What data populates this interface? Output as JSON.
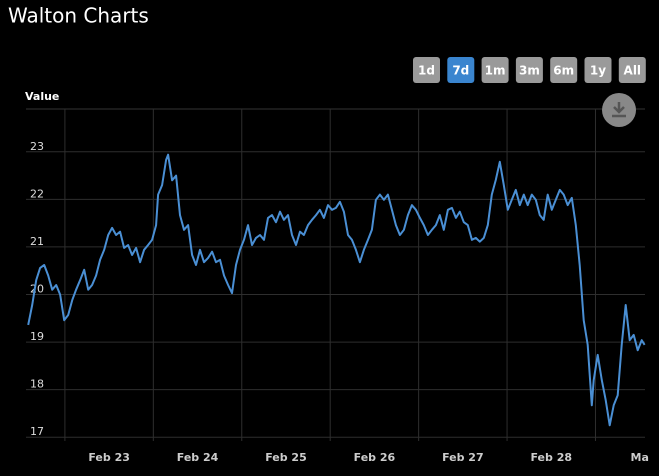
{
  "header": {
    "title": "Walton Charts"
  },
  "range_selector": {
    "buttons": [
      "1d",
      "7d",
      "1m",
      "3m",
      "6m",
      "1y",
      "All"
    ],
    "selected": 1
  },
  "chart_data": {
    "type": "line",
    "y_label": "Value",
    "xlim": [
      -0.94,
      6.06
    ],
    "ylim": [
      16.92,
      23.9
    ],
    "yticks": [
      17,
      18,
      19,
      20,
      21,
      22,
      23
    ],
    "xticks": [
      {
        "value": 0,
        "label": "Feb 23"
      },
      {
        "value": 1,
        "label": "Feb 24"
      },
      {
        "value": 2,
        "label": "Feb 25"
      },
      {
        "value": 3,
        "label": "Feb 26"
      },
      {
        "value": 4,
        "label": "Feb 27"
      },
      {
        "value": 5,
        "label": "Feb 28"
      },
      {
        "value": 6,
        "label": "Ma"
      }
    ],
    "xgrid": [
      -0.5,
      0.5,
      1.5,
      2.5,
      3.5,
      4.5,
      5.5
    ],
    "grid": true,
    "series": [
      {
        "color": "#4a8fd4",
        "x": [
          -0.915,
          -0.87,
          -0.825,
          -0.78,
          -0.734,
          -0.689,
          -0.644,
          -0.599,
          -0.554,
          -0.508,
          -0.463,
          -0.418,
          -0.373,
          -0.328,
          -0.282,
          -0.237,
          -0.192,
          -0.147,
          -0.102,
          -0.056,
          -0.011,
          0.034,
          0.079,
          0.124,
          0.169,
          0.215,
          0.26,
          0.305,
          0.35,
          0.395,
          0.441,
          0.486,
          0.531,
          0.554,
          0.599,
          0.644,
          0.667,
          0.712,
          0.757,
          0.802,
          0.847,
          0.893,
          0.938,
          0.983,
          1.028,
          1.073,
          1.119,
          1.164,
          1.209,
          1.254,
          1.299,
          1.345,
          1.39,
          1.435,
          1.48,
          1.525,
          1.571,
          1.616,
          1.661,
          1.706,
          1.751,
          1.797,
          1.842,
          1.887,
          1.932,
          1.977,
          2.023,
          2.068,
          2.113,
          2.158,
          2.203,
          2.249,
          2.294,
          2.339,
          2.384,
          2.429,
          2.475,
          2.52,
          2.565,
          2.61,
          2.655,
          2.701,
          2.746,
          2.791,
          2.836,
          2.881,
          2.927,
          2.972,
          3.017,
          3.062,
          3.107,
          3.153,
          3.198,
          3.243,
          3.288,
          3.333,
          3.379,
          3.424,
          3.469,
          3.514,
          3.559,
          3.605,
          3.65,
          3.695,
          3.74,
          3.785,
          3.831,
          3.876,
          3.921,
          3.966,
          4.011,
          4.056,
          4.102,
          4.147,
          4.192,
          4.237,
          4.282,
          4.328,
          4.373,
          4.418,
          4.463,
          4.508,
          4.554,
          4.599,
          4.644,
          4.689,
          4.734,
          4.78,
          4.825,
          4.87,
          4.915,
          4.96,
          5.006,
          5.051,
          5.096,
          5.141,
          5.186,
          5.232,
          5.277,
          5.322,
          5.367,
          5.412,
          5.458,
          5.48,
          5.525,
          5.571,
          5.616,
          5.661,
          5.706,
          5.751,
          5.797,
          5.842,
          5.887,
          5.932,
          5.977,
          6.023,
          6.056
        ],
        "values": [
          19.36,
          19.78,
          20.3,
          20.56,
          20.62,
          20.4,
          20.1,
          20.2,
          20.0,
          19.46,
          19.57,
          19.88,
          20.1,
          20.3,
          20.52,
          20.1,
          20.2,
          20.4,
          20.73,
          20.94,
          21.25,
          21.4,
          21.25,
          21.32,
          20.98,
          21.04,
          20.83,
          20.98,
          20.68,
          20.94,
          21.04,
          21.15,
          21.46,
          22.1,
          22.3,
          22.83,
          22.94,
          22.4,
          22.5,
          21.67,
          21.36,
          21.46,
          20.83,
          20.62,
          20.94,
          20.68,
          20.77,
          20.9,
          20.68,
          20.73,
          20.4,
          20.2,
          20.03,
          20.62,
          20.94,
          21.15,
          21.46,
          21.04,
          21.19,
          21.25,
          21.15,
          21.61,
          21.67,
          21.52,
          21.74,
          21.57,
          21.67,
          21.25,
          21.04,
          21.32,
          21.25,
          21.46,
          21.57,
          21.67,
          21.78,
          21.61,
          21.88,
          21.78,
          21.82,
          21.95,
          21.74,
          21.25,
          21.15,
          20.94,
          20.68,
          20.94,
          21.15,
          21.36,
          21.99,
          22.1,
          21.99,
          22.1,
          21.78,
          21.46,
          21.25,
          21.36,
          21.67,
          21.88,
          21.78,
          21.61,
          21.46,
          21.25,
          21.36,
          21.46,
          21.67,
          21.36,
          21.78,
          21.82,
          21.61,
          21.74,
          21.52,
          21.46,
          21.15,
          21.19,
          21.11,
          21.19,
          21.46,
          22.1,
          22.41,
          22.79,
          22.3,
          21.78,
          21.99,
          22.2,
          21.88,
          22.1,
          21.88,
          22.1,
          21.99,
          21.67,
          21.57,
          22.1,
          21.78,
          21.99,
          22.2,
          22.1,
          21.88,
          22.03,
          21.46,
          20.62,
          19.46,
          18.94,
          17.67,
          18.2,
          18.73,
          18.2,
          17.78,
          17.25,
          17.67,
          17.88,
          18.94,
          19.78,
          19.04,
          19.15,
          18.83,
          19.04,
          18.94
        ]
      }
    ]
  }
}
